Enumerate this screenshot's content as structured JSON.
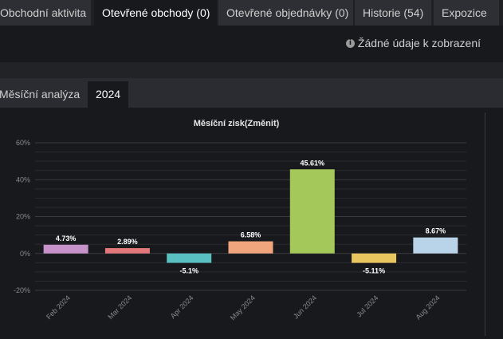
{
  "tabs": [
    {
      "label": "Obchodní aktivita",
      "active": false
    },
    {
      "label": "Otevřené obchody (0)",
      "active": true
    },
    {
      "label": "Otevřené objednávky (0)",
      "active": false
    },
    {
      "label": "Historie (54)",
      "active": false
    },
    {
      "label": "Expozice",
      "active": false
    }
  ],
  "status": {
    "icon": "info-icon",
    "text": "Žádné údaje k zobrazení"
  },
  "subtabs": [
    {
      "label": "Měsíční analýza",
      "active": false
    },
    {
      "label": "2024",
      "active": true
    }
  ],
  "chart_data": {
    "type": "bar",
    "title": "Měsíční zisk(Změnit)",
    "categories": [
      "Feb 2024",
      "Mar 2024",
      "Apr 2024",
      "May 2024",
      "Jun 2024",
      "Jul 2024",
      "Aug 2024"
    ],
    "values": [
      4.73,
      2.89,
      -5.1,
      6.58,
      45.61,
      -5.11,
      8.67
    ],
    "labels": [
      "4.73%",
      "2.89%",
      "-5.1%",
      "6.58%",
      "45.61%",
      "-5.11%",
      "8.67%"
    ],
    "colors": [
      "#c792c9",
      "#e3787a",
      "#59bfc1",
      "#f0a57c",
      "#a4c85a",
      "#e8c55e",
      "#b9d3e8"
    ],
    "yticks": [
      -20,
      0,
      20,
      40,
      60
    ],
    "ytick_labels": [
      "-20%",
      "0%",
      "20%",
      "40%",
      "60%"
    ],
    "ylim": [
      -20,
      60
    ],
    "grid": true
  }
}
